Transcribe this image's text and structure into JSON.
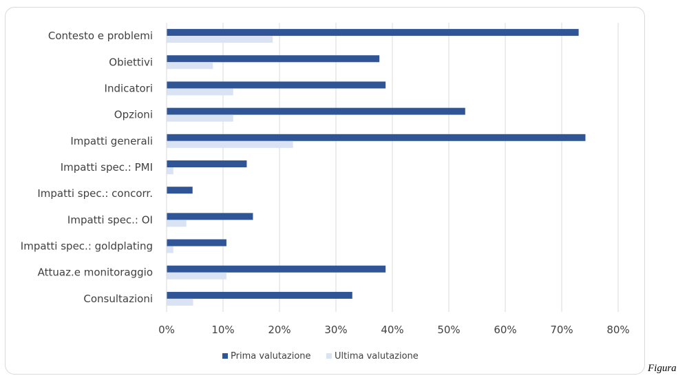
{
  "caption": "Figura",
  "colors": {
    "prima": "#2f5597",
    "ultima": "#dae3f3",
    "grid": "#d9d9d9",
    "text": "#404040"
  },
  "chart_data": {
    "type": "bar",
    "orientation": "horizontal",
    "categories": [
      "Contesto e problemi",
      "Obiettivi",
      "Indicatori",
      "Opzioni",
      "Impatti generali",
      "Impatti spec.: PMI",
      "Impatti spec.: concorr.",
      "Impatti spec.: OI",
      "Impatti spec.: goldplating",
      "Attuaz.e monitoraggio",
      "Consultazioni"
    ],
    "series": [
      {
        "name": "Prima valutazione",
        "values": [
          73,
          37.7,
          38.8,
          52.9,
          74.2,
          14.2,
          4.6,
          15.3,
          10.6,
          38.8,
          32.9
        ]
      },
      {
        "name": "Ultima valutazione",
        "values": [
          18.8,
          8.2,
          11.8,
          11.8,
          22.4,
          1.2,
          0,
          3.5,
          1.2,
          10.6,
          4.7
        ]
      }
    ],
    "xlim": [
      0,
      80
    ],
    "xticks": [
      "0%",
      "10%",
      "20%",
      "30%",
      "40%",
      "50%",
      "60%",
      "70%",
      "80%"
    ],
    "grid": true,
    "legend": "bottom"
  }
}
